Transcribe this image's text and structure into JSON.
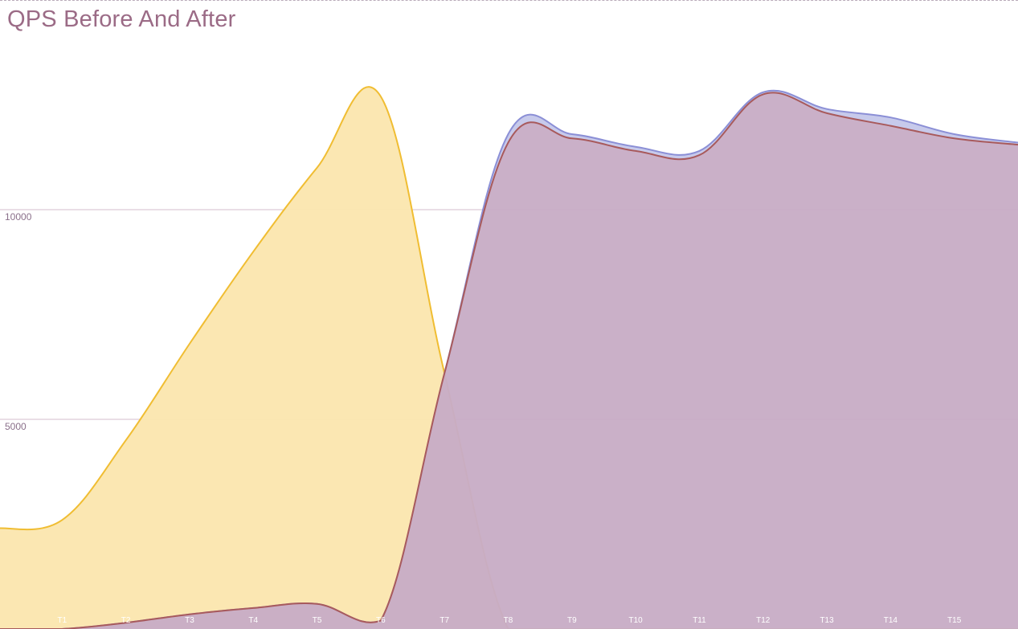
{
  "chart_data": {
    "type": "area",
    "title": "QPS Before And After",
    "xlabel": "",
    "ylabel": "",
    "categories": [
      "",
      "T1",
      "T2",
      "T3",
      "T4",
      "T5",
      "T6",
      "T7",
      "T8",
      "T9",
      "T10",
      "T11",
      "T12",
      "T13",
      "T14",
      "T15",
      ""
    ],
    "y_ticks": [
      5000,
      10000
    ],
    "y_tick_labels": [
      "5000",
      "10000"
    ],
    "ylim": [
      0,
      15000
    ],
    "grid": true,
    "legend": "none",
    "series": [
      {
        "color_fill": "#fbe6ae",
        "color_line": "#f0bd32",
        "values": [
          2400,
          2600,
          4500,
          6800,
          9000,
          11000,
          12700,
          6100,
          0,
          0,
          0,
          0,
          0,
          0,
          0,
          0,
          0
        ]
      },
      {
        "color_fill": "#b9bde6",
        "color_line": "#8b8fd6",
        "values": [
          0,
          0,
          150,
          350,
          500,
          600,
          200,
          6100,
          11800,
          11800,
          11500,
          11400,
          12800,
          12400,
          12200,
          11800,
          11600
        ]
      },
      {
        "color_fill": "#cba9bf",
        "color_line": "#a85a5c",
        "values": [
          0,
          0,
          150,
          350,
          500,
          600,
          200,
          6100,
          11600,
          11700,
          11400,
          11300,
          12750,
          12300,
          12000,
          11700,
          11550
        ]
      }
    ]
  }
}
